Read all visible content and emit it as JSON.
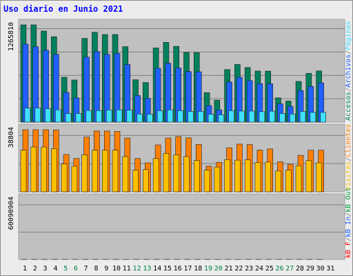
{
  "title": "Uso diario en Junio 2021",
  "colors": {
    "background": "#ececec",
    "panel": "#c0c0c0",
    "gridline": "#808080",
    "weekday_label": "#000000",
    "weekend_label": "#008040",
    "legend_separator": "#808080"
  },
  "chart_data": [
    {
      "type": "bar",
      "panel": "top",
      "ytick_label": "1265810",
      "ylim": [
        0,
        1265810
      ],
      "x": [
        1,
        2,
        3,
        4,
        5,
        6,
        7,
        8,
        9,
        10,
        11,
        12,
        13,
        14,
        15,
        16,
        17,
        18,
        19,
        20,
        21,
        22,
        23,
        24,
        25,
        26,
        27,
        28,
        29,
        30,
        31
      ],
      "weekend_days": [
        5,
        6,
        12,
        13,
        19,
        20,
        26,
        27
      ],
      "legend": [
        {
          "name": "Accesos",
          "color": "#00805c"
        },
        {
          "name": "/",
          "color": "#808080"
        },
        {
          "name": "Archivos",
          "color": "#2060ff"
        },
        {
          "name": "/",
          "color": "#808080"
        },
        {
          "name": "Páginas",
          "color": "#40e0ff"
        }
      ],
      "series": [
        {
          "name": "Accesos",
          "color": "#00805c",
          "values": [
            1265810,
            1265810,
            1185000,
            1111000,
            584000,
            548000,
            1090000,
            1169000,
            1140000,
            1140000,
            982000,
            552000,
            515000,
            966000,
            1038000,
            986000,
            908000,
            905000,
            384000,
            286000,
            684000,
            750000,
            711000,
            665000,
            664000,
            316000,
            275000,
            530000,
            635000,
            666000,
            0
          ]
        },
        {
          "name": "Archivos",
          "color": "#2060ff",
          "values": [
            1015000,
            981000,
            936000,
            883000,
            386000,
            315000,
            846000,
            919000,
            881000,
            894000,
            749000,
            347000,
            310000,
            700000,
            766000,
            706000,
            658000,
            655000,
            215000,
            160000,
            522000,
            584000,
            541000,
            501000,
            500000,
            239000,
            206000,
            411000,
            465000,
            511000,
            0
          ]
        },
        {
          "name": "Páginas",
          "color": "#40e0ff",
          "values": [
            183000,
            183000,
            175000,
            161000,
            112000,
            112000,
            152000,
            151000,
            158000,
            160000,
            156000,
            106000,
            104000,
            149000,
            160000,
            150000,
            140000,
            140000,
            103000,
            96000,
            149000,
            144000,
            144000,
            136000,
            143000,
            113000,
            105000,
            140000,
            127000,
            127000,
            0
          ]
        }
      ]
    },
    {
      "type": "bar",
      "panel": "middle",
      "ytick_label": "38804",
      "ylim": [
        0,
        38804
      ],
      "legend": [
        {
          "name": "Visitas",
          "color": "#ffc000"
        },
        {
          "name": "/",
          "color": "#808080"
        },
        {
          "name": "Clientes",
          "color": "#ff8000"
        }
      ],
      "series": [
        {
          "name": "Clientes",
          "color": "#ff8000",
          "values": [
            38804,
            38804,
            38804,
            38600,
            23300,
            20800,
            34200,
            38000,
            38000,
            37700,
            33600,
            20800,
            18100,
            29300,
            33600,
            34500,
            33700,
            29600,
            16000,
            18400,
            27500,
            29800,
            29500,
            26100,
            26800,
            18700,
            17200,
            22800,
            26000,
            26000,
            0
          ]
        },
        {
          "name": "Visitas",
          "color": "#ffc000",
          "values": [
            26000,
            28000,
            28000,
            27000,
            17400,
            16000,
            23100,
            26000,
            26000,
            26000,
            22000,
            13600,
            13900,
            20800,
            24000,
            23000,
            22000,
            19600,
            13500,
            15500,
            20100,
            19800,
            20000,
            18300,
            18600,
            13000,
            13500,
            16300,
            19500,
            18100,
            0
          ]
        }
      ]
    },
    {
      "type": "bar",
      "panel": "bottom",
      "ytick_label": "60090904",
      "ylim": [
        0,
        60090904
      ],
      "legend": [
        {
          "name": "kB F",
          "color": "#ff0000"
        },
        {
          "name": "/",
          "color": "#808080"
        },
        {
          "name": "kB In",
          "color": "#2060ff"
        },
        {
          "name": "/",
          "color": "#808080"
        },
        {
          "name": "kB Out",
          "color": "#00a040"
        }
      ],
      "series": [
        {
          "name": "kB F",
          "color": "#ff0000",
          "values": [
            58100,
            54600,
            51000,
            50100,
            35100,
            30000,
            44400,
            50100,
            50100,
            60090,
            45700,
            32800,
            32500,
            44700,
            52000,
            43800,
            43700,
            45600,
            28700,
            21800,
            35100,
            40800,
            40800,
            35100,
            33700,
            25900,
            26000,
            34000,
            37300,
            37300,
            0
          ]
        }
      ]
    }
  ]
}
